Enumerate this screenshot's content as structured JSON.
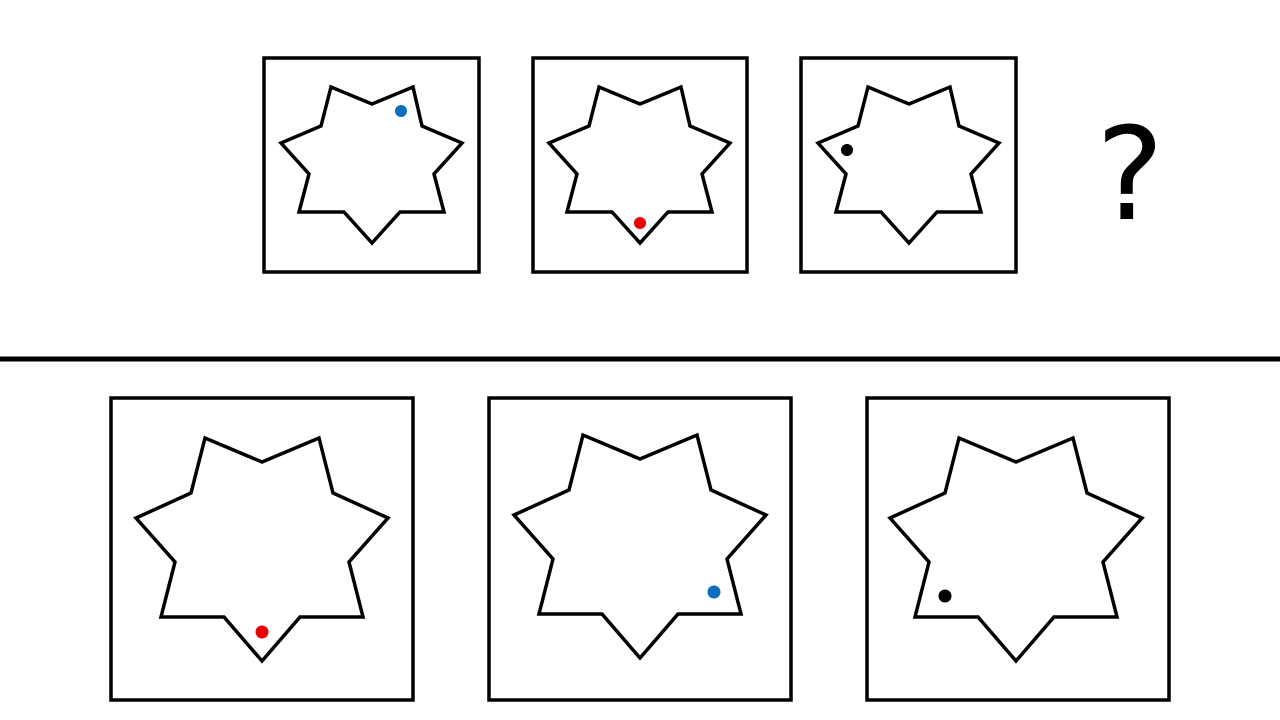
{
  "puzzle": {
    "question_mark": "?",
    "dot_colors": {
      "blue": "#0a6ebd",
      "red": "#ee0000",
      "black": "#000000"
    },
    "sequence": [
      {
        "name": "sequence-panel-1",
        "dot": "blue"
      },
      {
        "name": "sequence-panel-2",
        "dot": "red"
      },
      {
        "name": "sequence-panel-3",
        "dot": "black"
      }
    ],
    "options": [
      {
        "name": "answer-option-1",
        "dot": "red"
      },
      {
        "name": "answer-option-2",
        "dot": "blue"
      },
      {
        "name": "answer-option-3",
        "dot": "black"
      }
    ]
  }
}
